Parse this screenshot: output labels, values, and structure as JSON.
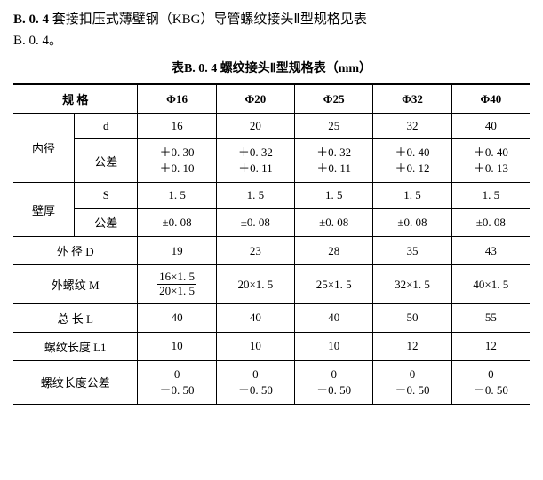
{
  "heading": {
    "section_num": "B. 0. 4",
    "text_main": "套接扣压式薄壁钢（KBG）导管螺纹接头Ⅱ型规格见表",
    "ref": "B. 0. 4。"
  },
  "table_title": "表B. 0. 4  螺纹接头Ⅱ型规格表（mm）",
  "columns": {
    "spec_header": "规    格",
    "phi_vals": [
      "Φ16",
      "Φ20",
      "Φ25",
      "Φ32",
      "Φ40"
    ]
  },
  "rows": {
    "inner_dia": {
      "group_label": "内径",
      "d_label": "d",
      "d_vals": [
        "16",
        "20",
        "25",
        "32",
        "40"
      ],
      "tol_label": "公差",
      "tol_vals": [
        "＋0. 30\n＋0. 10",
        "＋0. 32\n＋0. 11",
        "＋0. 32\n＋0. 11",
        "＋0. 40\n＋0. 12",
        "＋0. 40\n＋0. 13"
      ]
    },
    "wall": {
      "group_label": "壁厚",
      "s_label": "S",
      "s_vals": [
        "1. 5",
        "1. 5",
        "1. 5",
        "1. 5",
        "1. 5"
      ],
      "tol_label": "公差",
      "tol_vals": [
        "±0. 08",
        "±0. 08",
        "±0. 08",
        "±0. 08",
        "±0. 08"
      ]
    },
    "outer_dia": {
      "label": "外 径 D",
      "vals": [
        "19",
        "23",
        "28",
        "35",
        "43"
      ]
    },
    "outer_thread": {
      "label": "外螺纹 M",
      "vals": [
        "",
        "20×1. 5",
        "25×1. 5",
        "32×1. 5",
        "40×1. 5"
      ],
      "val0_num": "16×1. 5",
      "val0_den": "20×1. 5"
    },
    "total_len": {
      "label": "总 长 L",
      "vals": [
        "40",
        "40",
        "40",
        "50",
        "55"
      ]
    },
    "thread_len": {
      "label": "螺纹长度 L1",
      "vals": [
        "10",
        "10",
        "10",
        "12",
        "12"
      ]
    },
    "thread_tol": {
      "label": "螺纹长度公差",
      "vals": [
        "0\n－0. 50",
        "0\n－0. 50",
        "0\n－0. 50",
        "0\n－0. 50",
        "0\n－0. 50"
      ]
    }
  }
}
